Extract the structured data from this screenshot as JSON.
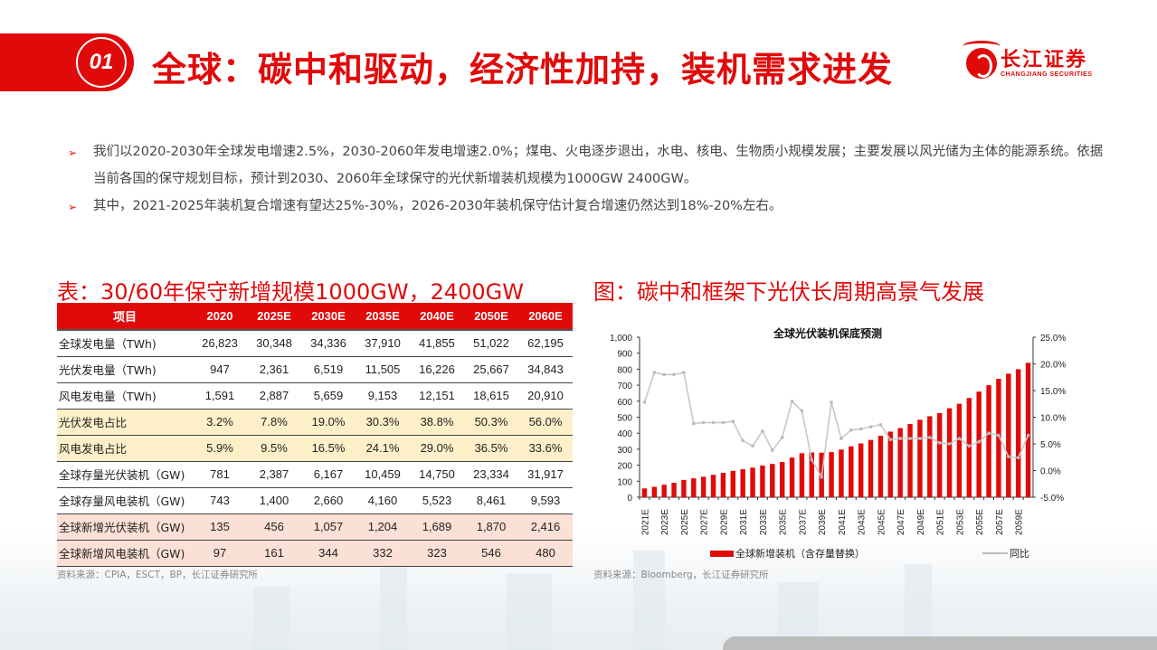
{
  "header": {
    "section_number": "01",
    "title": "全球：碳中和驱动，经济性加持，装机需求进发",
    "logo": {
      "cn": "长江证券",
      "en": "CHANGJIANG SECURITIES"
    }
  },
  "bullets": [
    "我们以2020-2030年全球发电增速2.5%，2030-2060年发电增速2.0%；煤电、火电逐步退出，水电、核电、生物质小规模发展；主要发展以风光储为主体的能源系统。依据当前各国的保守规划目标，预计到2030、2060年全球保守的光伏新增装机规模为1000GW   2400GW。",
    "其中，2021-2025年装机复合增速有望达25%-30%，2026-2030年装机保守估计复合增速仍然达到18%-20%左右。"
  ],
  "table": {
    "title": "表：30/60年保守新增规模1000GW，2400GW",
    "headers": [
      "项目",
      "2020",
      "2025E",
      "2030E",
      "2035E",
      "2040E",
      "2050E",
      "2060E"
    ],
    "rows": [
      {
        "style": "white",
        "cells": [
          "全球发电量（TWh)",
          "26,823",
          "30,348",
          "34,336",
          "37,910",
          "41,855",
          "51,022",
          "62,195"
        ]
      },
      {
        "style": "white",
        "cells": [
          "光伏发电量（TWh)",
          "947",
          "2,361",
          "6,519",
          "11,505",
          "16,226",
          "25,667",
          "34,843"
        ]
      },
      {
        "style": "white",
        "cells": [
          "风电发电量（TWh)",
          "1,591",
          "2,887",
          "5,659",
          "9,153",
          "12,151",
          "18,615",
          "20,910"
        ]
      },
      {
        "style": "yellow",
        "cells": [
          "光伏发电占比",
          "3.2%",
          "7.8%",
          "19.0%",
          "30.3%",
          "38.8%",
          "50.3%",
          "56.0%"
        ]
      },
      {
        "style": "yellow",
        "cells": [
          "风电发电占比",
          "5.9%",
          "9.5%",
          "16.5%",
          "24.1%",
          "29.0%",
          "36.5%",
          "33.6%"
        ]
      },
      {
        "style": "white",
        "cells": [
          "全球存量光伏装机（GW)",
          "781",
          "2,387",
          "6,167",
          "10,459",
          "14,750",
          "23,334",
          "31,917"
        ]
      },
      {
        "style": "white",
        "cells": [
          "全球存量风电装机（GW)",
          "743",
          "1,400",
          "2,660",
          "4,160",
          "5,523",
          "8,461",
          "9,593"
        ]
      },
      {
        "style": "pink",
        "cells": [
          "全球新增光伏装机（GW)",
          "135",
          "456",
          "1,057",
          "1,204",
          "1,689",
          "1,870",
          "2,416"
        ]
      },
      {
        "style": "pink",
        "cells": [
          "全球新增风电装机（GW)",
          "97",
          "161",
          "344",
          "332",
          "323",
          "546",
          "480"
        ]
      }
    ],
    "source": "资料来源：CPIA，ESCT，BP，长江证券研究所"
  },
  "figure": {
    "title": "图：碳中和框架下光伏长周期高景气发展",
    "source": "资料来源：Bloomberg，长江证券研究所"
  },
  "chart_data": {
    "type": "bar",
    "title": "全球光伏装机保底预测",
    "categories": [
      "2021E",
      "2022E",
      "2023E",
      "2024E",
      "2025E",
      "2026E",
      "2027E",
      "2028E",
      "2029E",
      "2030E",
      "2031E",
      "2032E",
      "2033E",
      "2034E",
      "2035E",
      "2036E",
      "2037E",
      "2038E",
      "2039E",
      "2040E",
      "2041E",
      "2042E",
      "2043E",
      "2044E",
      "2045E",
      "2046E",
      "2047E",
      "2048E",
      "2049E",
      "2050E",
      "2051E",
      "2052E",
      "2053E",
      "2054E",
      "2055E",
      "2056E",
      "2057E",
      "2058E",
      "2059E",
      "2060E"
    ],
    "x_tick_labels": [
      "2021E",
      "2023E",
      "2025E",
      "2027E",
      "2029E",
      "2031E",
      "2033E",
      "2035E",
      "2037E",
      "2039E",
      "2041E",
      "2043E",
      "2045E",
      "2047E",
      "2049E",
      "2051E",
      "2053E",
      "2055E",
      "2057E",
      "2059E"
    ],
    "series": [
      {
        "name": "全球新增装机（含存量替换）",
        "type": "bar",
        "axis": "left",
        "color": "#e10a0a",
        "values": [
          55,
          65,
          78,
          90,
          108,
          118,
          128,
          140,
          152,
          165,
          175,
          185,
          198,
          208,
          220,
          248,
          275,
          280,
          278,
          282,
          298,
          318,
          336,
          358,
          384,
          410,
          432,
          458,
          484,
          506,
          526,
          556,
          584,
          620,
          660,
          700,
          740,
          772,
          800,
          840
        ]
      },
      {
        "name": "同比",
        "type": "line",
        "axis": "right",
        "color": "#c8c8c8",
        "values": [
          12.8,
          18.4,
          18.0,
          18.0,
          18.4,
          8.8,
          9.0,
          9.0,
          9.0,
          9.2,
          5.6,
          4.6,
          7.4,
          3.8,
          6.2,
          13.0,
          11.2,
          2.0,
          -1.2,
          12.8,
          6.0,
          7.6,
          7.8,
          8.2,
          8.6,
          5.8,
          6.0,
          6.0,
          6.0,
          6.2,
          5.2,
          5.0,
          6.0,
          4.6,
          5.4,
          7.0,
          6.6,
          2.6,
          2.4,
          6.6
        ]
      }
    ],
    "ylim_left": [
      0,
      1000
    ],
    "yticks_left": [
      "1,000",
      "900",
      "800",
      "700",
      "600",
      "500",
      "400",
      "300",
      "200",
      "100",
      "0"
    ],
    "ylim_right": [
      -5.0,
      25.0
    ],
    "yticks_right": [
      "25.0%",
      "20.0%",
      "15.0%",
      "10.0%",
      "5.0%",
      "0.0%",
      "-5.0%"
    ],
    "legend": [
      "全球新增装机（含存量替换）",
      "同比"
    ],
    "legend_position": "bottom",
    "grid": false
  }
}
